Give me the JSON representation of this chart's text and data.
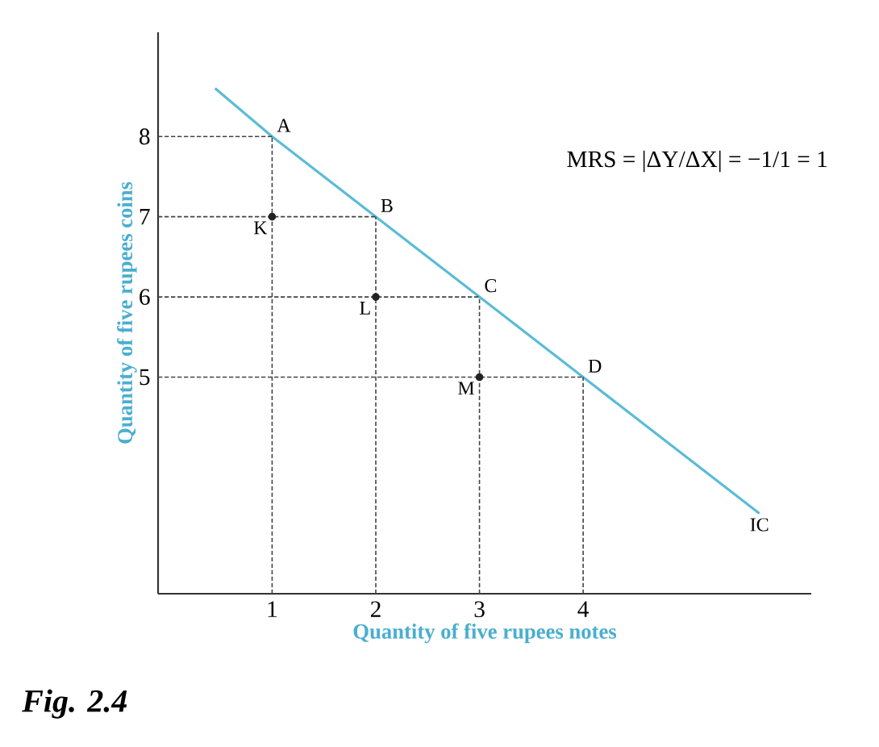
{
  "chart_data": {
    "type": "line",
    "xlabel": "Quantity of five rupees notes",
    "ylabel": "Quantity of five rupees coins",
    "xlim": [
      -0.1,
      6.2
    ],
    "ylim": [
      2.3,
      9.3
    ],
    "xticks": [
      1,
      2,
      3,
      4
    ],
    "yticks": [
      5,
      6,
      7,
      8
    ],
    "marker": "none",
    "series": [
      {
        "color": "#5bbcd6",
        "x": [
          0.45,
          1,
          2,
          3,
          4,
          5.7
        ],
        "values": [
          8.6,
          8,
          7,
          6,
          5,
          3.3
        ]
      },
      {
        "type": "scatter",
        "marker": "circle",
        "color": "#222222",
        "x": [
          1,
          2,
          3
        ],
        "values": [
          7,
          6,
          5
        ]
      },
      {
        "color": "#444444",
        "line_style": "dashed",
        "x": [
          -0.1,
          1
        ],
        "values": [
          8,
          8
        ]
      },
      {
        "color": "#444444",
        "line_style": "dashed",
        "x": [
          -0.1,
          2
        ],
        "values": [
          7,
          7
        ]
      },
      {
        "color": "#444444",
        "line_style": "dashed",
        "x": [
          -0.1,
          3
        ],
        "values": [
          6,
          6
        ]
      },
      {
        "color": "#444444",
        "line_style": "dashed",
        "x": [
          -0.1,
          4
        ],
        "values": [
          5,
          5
        ]
      },
      {
        "color": "#444444",
        "line_style": "dashed",
        "x": [
          1,
          1
        ],
        "values": [
          2.3,
          8
        ]
      },
      {
        "color": "#444444",
        "line_style": "dashed",
        "x": [
          2,
          2
        ],
        "values": [
          2.3,
          7
        ]
      },
      {
        "color": "#444444",
        "line_style": "dashed",
        "x": [
          3,
          3
        ],
        "values": [
          2.3,
          6
        ]
      },
      {
        "color": "#444444",
        "line_style": "dashed",
        "x": [
          4,
          4
        ],
        "values": [
          2.3,
          5
        ]
      }
    ],
    "annotations": [
      {
        "text": "A",
        "x": 1,
        "y": 8
      },
      {
        "text": "B",
        "x": 2,
        "y": 7
      },
      {
        "text": "C",
        "x": 3,
        "y": 6
      },
      {
        "text": "D",
        "x": 4,
        "y": 5
      },
      {
        "text": "K",
        "x": 1,
        "y": 7
      },
      {
        "text": "L",
        "x": 2,
        "y": 6
      },
      {
        "text": "M",
        "x": 3,
        "y": 5
      },
      {
        "text": "IC",
        "x": 5.7,
        "y": 3.3
      },
      "MRS = |ΔY/ΔX| = −1/1 = 1",
      "Fig. 2.4"
    ]
  }
}
